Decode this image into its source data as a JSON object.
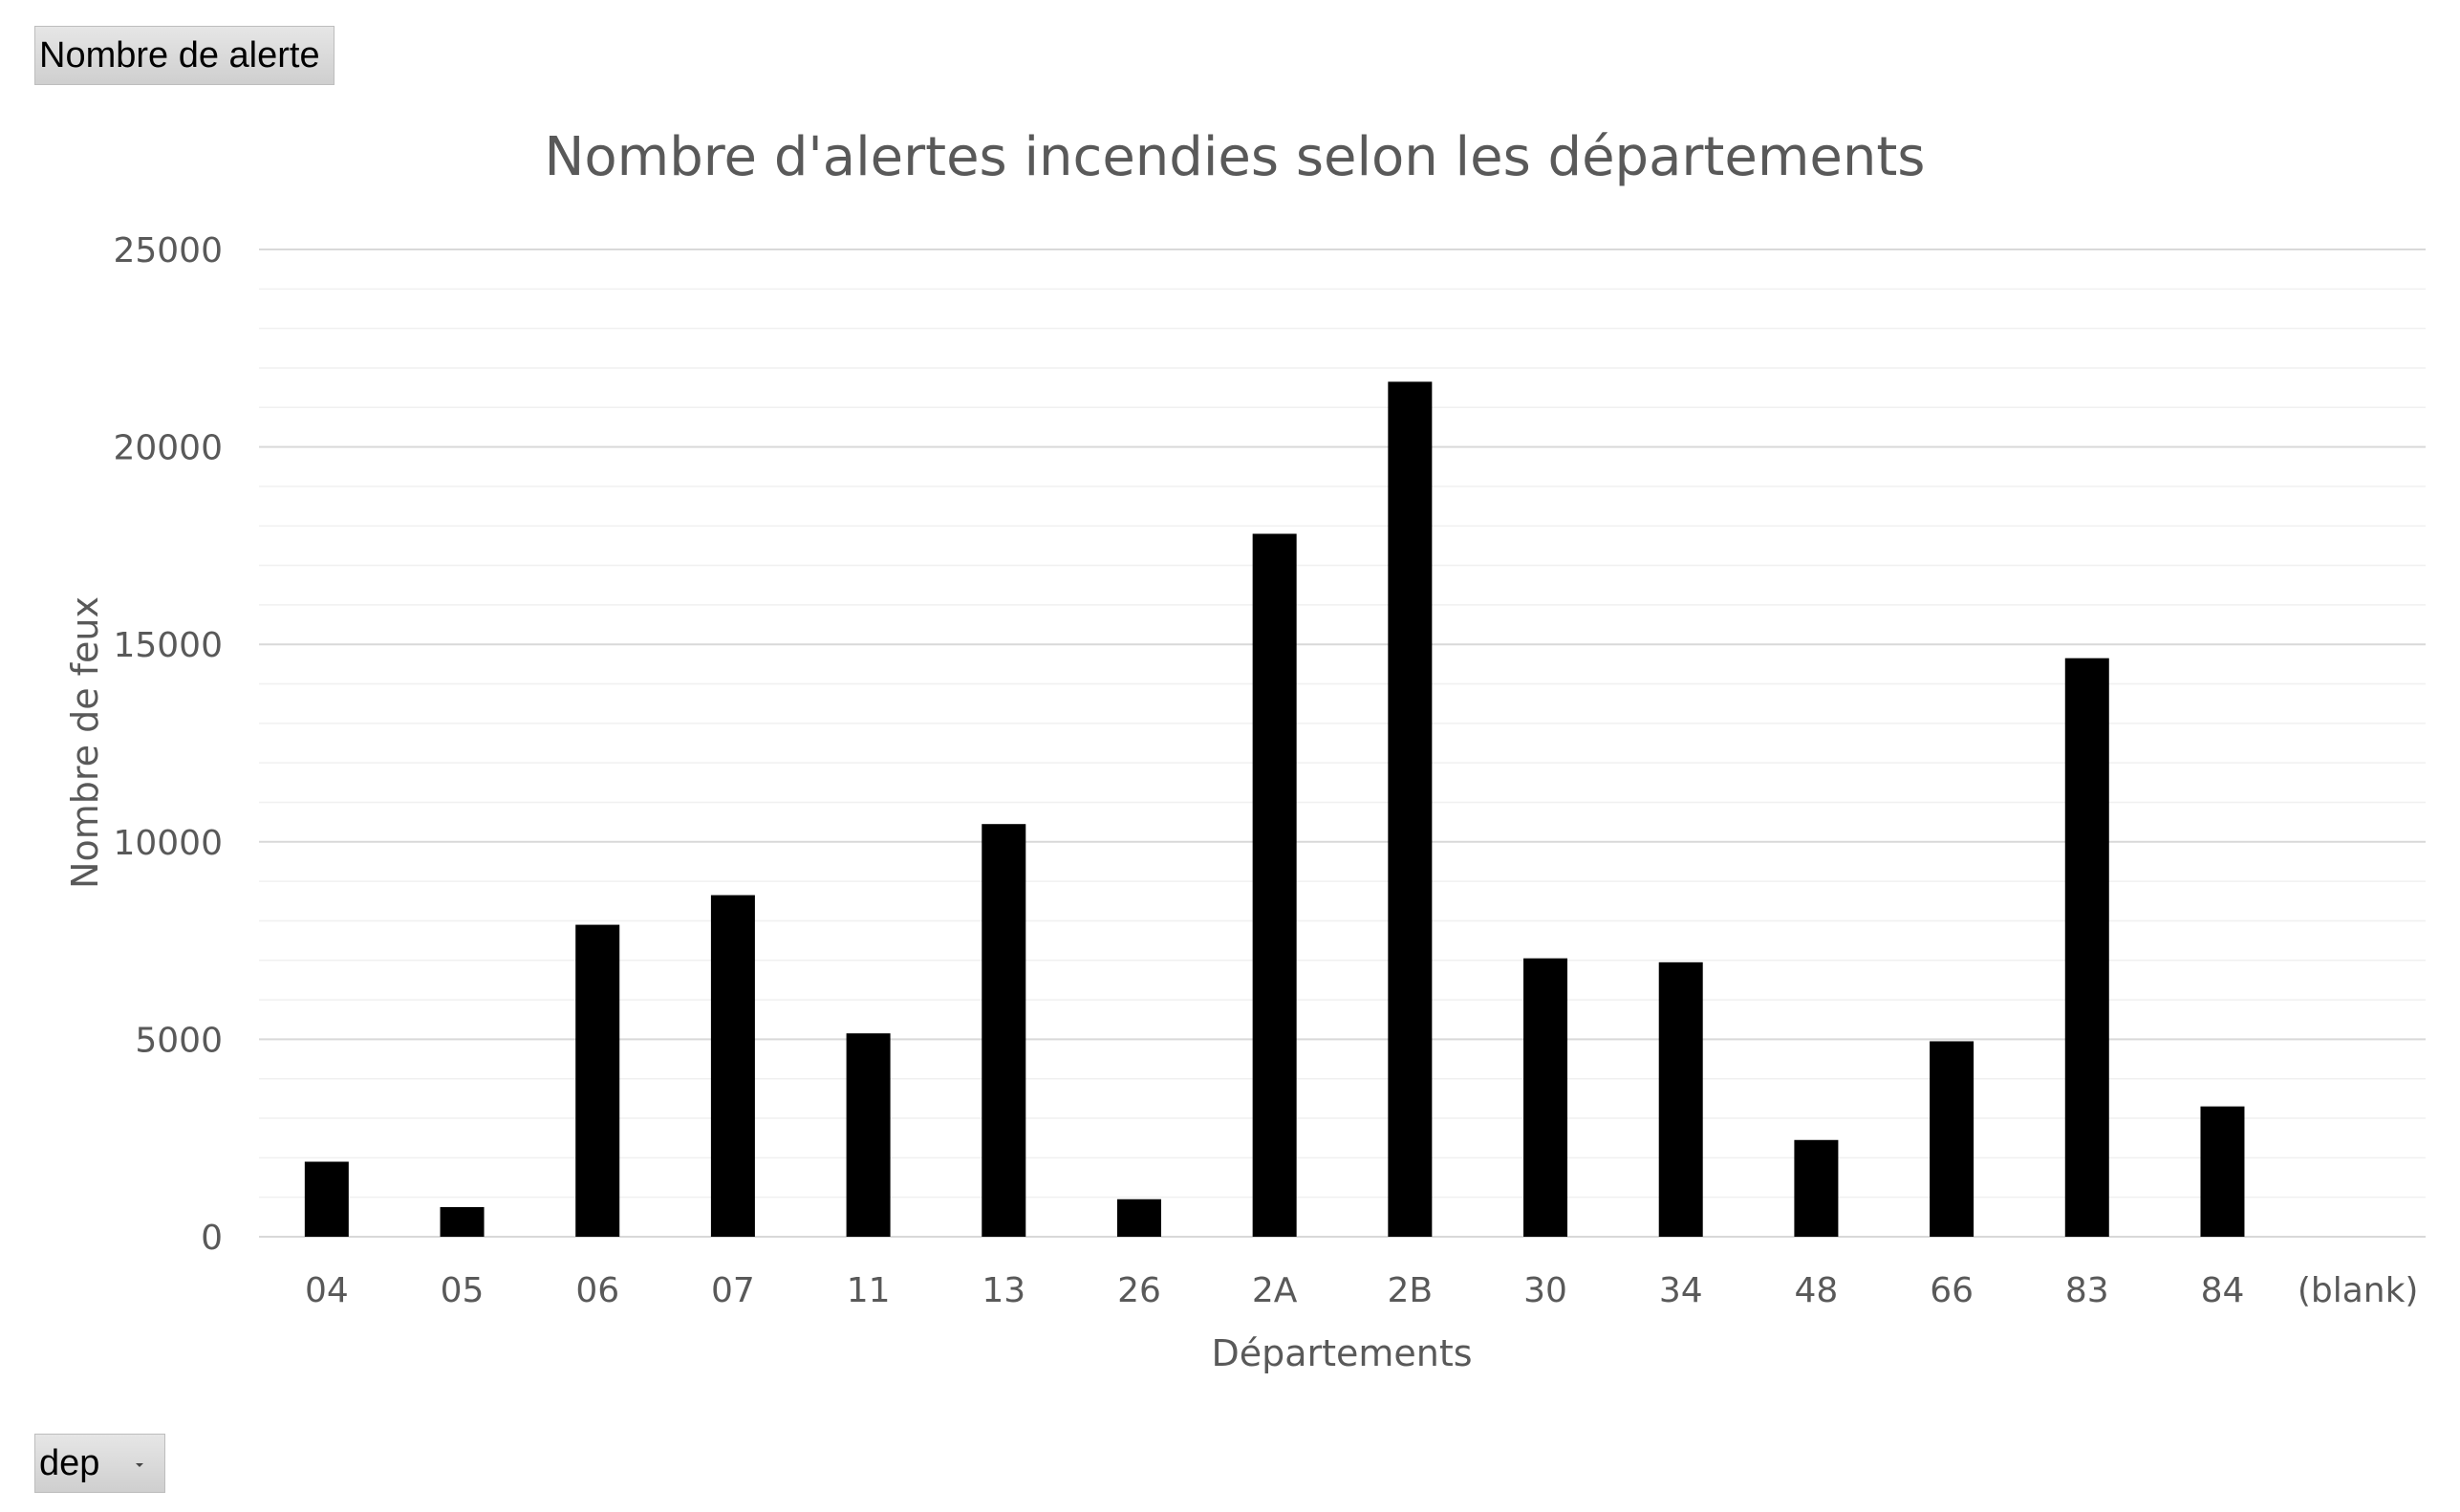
{
  "pivot_fields": {
    "values_button_label": "Nombre de alerte",
    "axis_button_label": "dep"
  },
  "colors": {
    "bar": "#000000",
    "major_grid": "#d9d9d9",
    "minor_grid": "#f0f0f0",
    "text": "#595959"
  },
  "chart_data": {
    "type": "bar",
    "title": "Nombre d'alertes incendies selon les départements",
    "xlabel": "Départements",
    "ylabel": "Nombre de feux",
    "ylim": [
      0,
      25000
    ],
    "yticks": [
      0,
      5000,
      10000,
      15000,
      20000,
      25000
    ],
    "grid": true,
    "legend": "none",
    "categories": [
      "04",
      "05",
      "06",
      "07",
      "11",
      "13",
      "26",
      "2A",
      "2B",
      "30",
      "34",
      "48",
      "66",
      "83",
      "84",
      "(blank)"
    ],
    "values": [
      1900,
      750,
      7900,
      8650,
      5150,
      10450,
      950,
      17800,
      21650,
      7050,
      6950,
      2450,
      4950,
      14650,
      3300,
      0
    ]
  }
}
